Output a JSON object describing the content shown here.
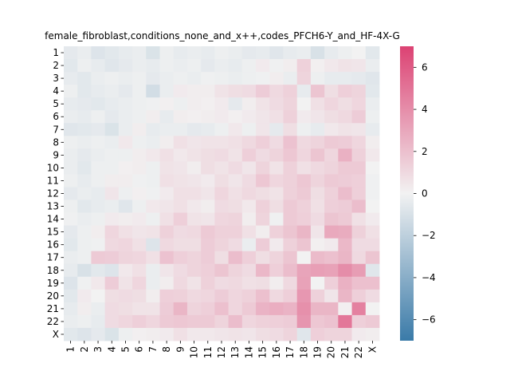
{
  "chart_data": {
    "type": "heatmap",
    "title": "female_fibroblast,conditions_none_and_x++,codes_PFCH6-Y_and_HF-4X-G",
    "xlabel": "",
    "ylabel": "",
    "x_categories": [
      "1",
      "2",
      "3",
      "4",
      "5",
      "6",
      "7",
      "8",
      "9",
      "10",
      "11",
      "12",
      "13",
      "14",
      "15",
      "16",
      "17",
      "18",
      "19",
      "20",
      "21",
      "22",
      "X"
    ],
    "y_categories": [
      "1",
      "2",
      "3",
      "4",
      "5",
      "6",
      "7",
      "8",
      "9",
      "10",
      "11",
      "12",
      "13",
      "14",
      "15",
      "16",
      "17",
      "18",
      "19",
      "20",
      "21",
      "22",
      "X"
    ],
    "colorbar": {
      "range": [
        -7,
        7
      ],
      "ticks": [
        -6,
        -4,
        -2,
        0,
        2,
        4,
        6
      ],
      "tick_labels": [
        "−6",
        "−4",
        "−2",
        "0",
        "2",
        "4",
        "6"
      ],
      "low_color": "#3a7aa8",
      "mid_color": "#f2f2f2",
      "high_color": "#dc4273"
    },
    "values": [
      [
        -0.5,
        -0.3,
        -0.8,
        -0.6,
        -0.4,
        -0.3,
        -0.9,
        -0.2,
        -0.4,
        -0.3,
        -0.4,
        -0.2,
        -0.3,
        -0.5,
        -0.4,
        -0.7,
        -0.4,
        -0.3,
        -1.0,
        -0.4,
        -0.2,
        0.0,
        -0.6
      ],
      [
        -0.6,
        -0.2,
        -0.4,
        -0.7,
        -0.5,
        -0.3,
        -0.4,
        -0.2,
        -0.3,
        -0.2,
        -0.5,
        -0.3,
        -0.4,
        -0.2,
        0.3,
        -0.1,
        0.2,
        1.3,
        0.1,
        0.4,
        0.6,
        0.5,
        -0.3
      ],
      [
        -0.4,
        -0.6,
        -0.3,
        -0.2,
        -0.3,
        -0.2,
        -0.5,
        -0.3,
        -0.2,
        -0.3,
        -0.1,
        -0.2,
        -0.3,
        -0.2,
        -0.1,
        0.2,
        -0.3,
        1.2,
        -0.2,
        -0.4,
        -0.4,
        -0.5,
        -0.7
      ],
      [
        -0.2,
        -0.6,
        -0.4,
        -0.3,
        -0.5,
        -0.2,
        -1.2,
        -0.3,
        0.3,
        0.2,
        0.2,
        0.6,
        0.8,
        0.9,
        1.5,
        1.0,
        1.3,
        -0.4,
        1.8,
        0.8,
        1.4,
        1.2,
        -0.6
      ],
      [
        -0.4,
        -0.5,
        -0.6,
        -0.4,
        -0.3,
        -0.2,
        -0.1,
        0.1,
        -0.2,
        0.2,
        0.1,
        0.3,
        -0.5,
        0.2,
        0.6,
        0.9,
        1.2,
        0.0,
        0.7,
        1.1,
        0.8,
        1.1,
        -0.3
      ],
      [
        -0.3,
        -0.4,
        -0.2,
        -0.5,
        -0.3,
        -0.2,
        0.2,
        -0.4,
        0.2,
        0.1,
        0.2,
        0.3,
        0.1,
        0.3,
        0.5,
        0.7,
        1.3,
        0.3,
        0.5,
        0.8,
        1.0,
        1.5,
        -0.2
      ],
      [
        -0.7,
        -0.6,
        -0.5,
        -0.9,
        -0.3,
        0.2,
        -0.4,
        -0.3,
        -0.3,
        -0.5,
        -0.4,
        -0.2,
        0.4,
        -0.2,
        0.5,
        -0.5,
        0.8,
        -0.2,
        -0.4,
        0.4,
        0.6,
        0.5,
        -0.4
      ],
      [
        -0.2,
        -0.3,
        -0.2,
        -0.3,
        0.4,
        -0.2,
        -0.3,
        0.2,
        0.7,
        0.5,
        0.6,
        0.6,
        0.7,
        1.0,
        1.4,
        0.9,
        1.9,
        1.0,
        1.2,
        1.6,
        1.5,
        1.1,
        0.2
      ],
      [
        -0.3,
        -0.5,
        -0.3,
        -0.2,
        -0.2,
        0.2,
        0.4,
        0.7,
        0.4,
        0.6,
        0.8,
        0.9,
        0.6,
        1.4,
        0.9,
        1.2,
        1.7,
        1.1,
        1.8,
        1.1,
        2.6,
        1.3,
        0.4
      ],
      [
        -0.3,
        -0.6,
        -0.2,
        -0.2,
        0.1,
        0.2,
        -0.2,
        0.6,
        0.5,
        0.2,
        0.8,
        0.6,
        0.9,
        0.5,
        1.2,
        0.6,
        1.3,
        0.7,
        1.0,
        1.2,
        1.6,
        1.6,
        0.0
      ],
      [
        -0.2,
        -0.4,
        -0.2,
        0.2,
        0.2,
        -0.1,
        -0.2,
        0.7,
        0.6,
        0.5,
        0.3,
        0.8,
        0.5,
        0.9,
        1.7,
        1.1,
        1.3,
        1.7,
        1.2,
        1.6,
        1.5,
        1.4,
        -0.1
      ],
      [
        -0.5,
        -0.3,
        -0.4,
        0.5,
        -0.2,
        0.1,
        -0.1,
        0.3,
        0.7,
        0.7,
        0.5,
        1.1,
        0.7,
        1.0,
        0.8,
        0.6,
        1.3,
        1.6,
        0.8,
        1.3,
        2.1,
        1.4,
        -0.1
      ],
      [
        -0.2,
        -0.6,
        -0.4,
        -0.3,
        -0.7,
        -0.2,
        0.4,
        0.5,
        0.7,
        0.4,
        0.2,
        0.9,
        0.8,
        0.4,
        1.3,
        0.8,
        1.6,
        1.3,
        0.7,
        1.4,
        1.5,
        2.1,
        0.0
      ],
      [
        -0.1,
        -0.3,
        -0.2,
        0.3,
        0.2,
        0.3,
        -0.2,
        0.7,
        1.4,
        0.6,
        0.5,
        1.1,
        1.2,
        0.2,
        1.2,
        -0.1,
        1.6,
        1.4,
        0.9,
        1.8,
        1.6,
        0.7,
        0.3
      ],
      [
        -0.5,
        -0.2,
        0.2,
        1.1,
        0.7,
        0.5,
        0.6,
        1.3,
        0.9,
        1.0,
        1.6,
        1.3,
        1.3,
        0.7,
        0.2,
        1.3,
        1.8,
        2.4,
        0.5,
        2.9,
        2.8,
        1.3,
        0.7
      ],
      [
        -0.6,
        -0.2,
        -0.1,
        1.0,
        1.1,
        0.7,
        -0.8,
        1.0,
        0.8,
        0.8,
        1.5,
        1.2,
        0.9,
        -0.3,
        1.5,
        0.3,
        1.3,
        1.8,
        0.1,
        0.3,
        2.3,
        0.9,
        0.9
      ],
      [
        -0.3,
        -0.2,
        1.6,
        1.5,
        1.2,
        1.1,
        0.7,
        1.9,
        1.4,
        1.2,
        1.5,
        0.8,
        2.1,
        1.4,
        0.8,
        1.2,
        1.8,
        0.0,
        2.2,
        2.0,
        2.4,
        1.0,
        1.8
      ],
      [
        -0.4,
        -1.0,
        -0.6,
        -0.8,
        0.4,
        0.7,
        -0.3,
        0.5,
        0.9,
        1.2,
        1.4,
        1.8,
        1.2,
        0.9,
        2.3,
        1.4,
        2.1,
        3.1,
        3.3,
        3.2,
        4.0,
        3.4,
        -0.7
      ],
      [
        -0.8,
        -0.1,
        0.4,
        1.5,
        0.6,
        1.1,
        -0.3,
        0.2,
        1.0,
        0.6,
        1.3,
        0.9,
        1.0,
        0.7,
        0.8,
        0.2,
        1.0,
        3.2,
        0.0,
        1.4,
        2.6,
        2.0,
        2.0
      ],
      [
        -0.6,
        0.3,
        0.0,
        0.8,
        0.9,
        0.8,
        0.2,
        1.4,
        1.3,
        1.0,
        1.1,
        1.5,
        1.1,
        1.3,
        2.0,
        1.0,
        1.4,
        3.6,
        1.3,
        0.5,
        2.4,
        1.4,
        0.9
      ],
      [
        -0.4,
        0.2,
        -0.3,
        0.9,
        0.8,
        0.6,
        0.6,
        1.5,
        2.4,
        1.2,
        1.4,
        2.0,
        1.1,
        1.6,
        2.5,
        2.7,
        2.5,
        3.9,
        2.4,
        2.4,
        0.1,
        4.5,
        0.0
      ],
      [
        -0.3,
        -0.2,
        -0.4,
        0.9,
        1.1,
        1.4,
        1.1,
        1.6,
        1.7,
        1.6,
        1.6,
        1.2,
        2.1,
        1.1,
        1.3,
        1.4,
        1.5,
        3.7,
        1.7,
        1.9,
        4.9,
        1.4,
        1.6
      ],
      [
        -0.6,
        -0.8,
        -0.5,
        -0.9,
        -0.2,
        0.1,
        0.2,
        0.3,
        0.7,
        0.4,
        0.4,
        0.5,
        0.6,
        0.5,
        0.8,
        0.9,
        1.2,
        -0.7,
        1.4,
        1.2,
        1.2,
        0.3,
        0.2
      ]
    ]
  }
}
